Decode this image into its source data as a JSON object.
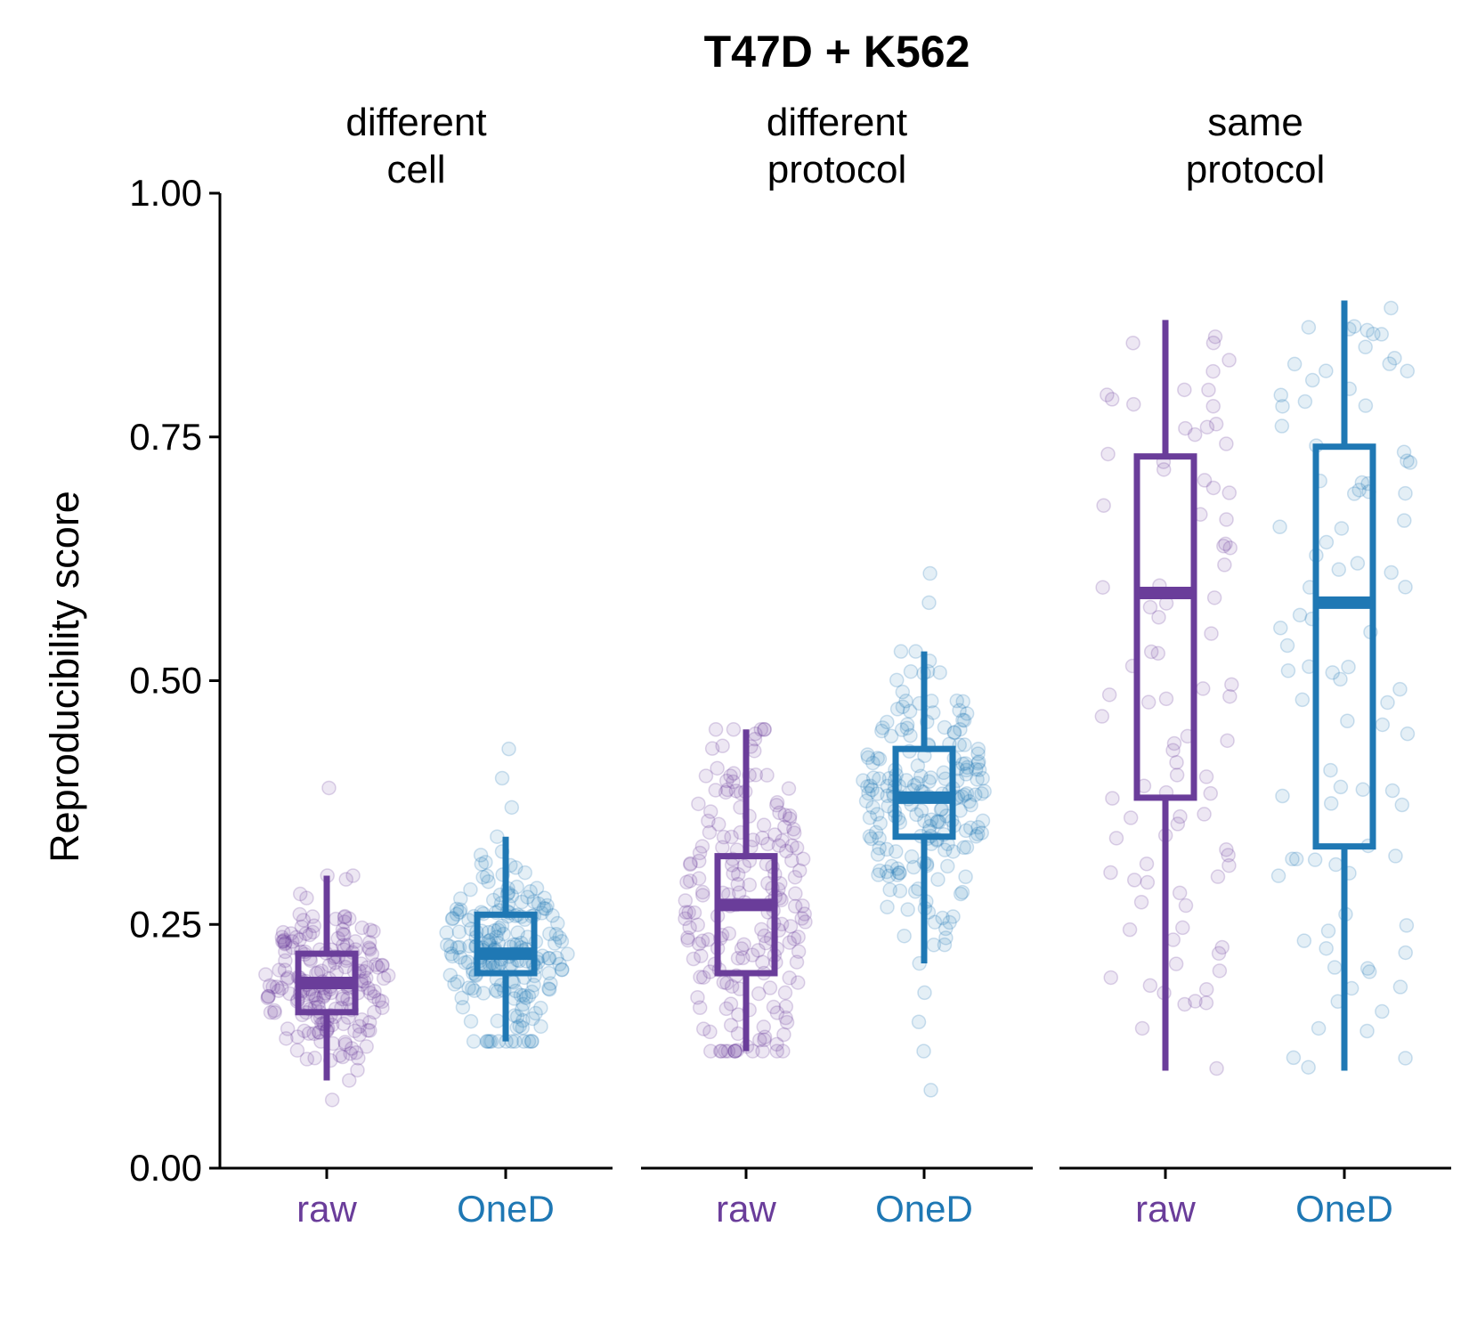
{
  "chart_data": {
    "type": "box",
    "title": "T47D + K562",
    "ylabel": "Reproducibility score",
    "ylim": [
      0,
      1
    ],
    "yticks": [
      "0.00",
      "0.25",
      "0.50",
      "0.75",
      "1.00"
    ],
    "grid": false,
    "categories": [
      "raw",
      "OneD"
    ],
    "category_colors": {
      "raw": "#6a3d9a",
      "OneD": "#1f78b4"
    },
    "panels": [
      {
        "label": "different\ncell",
        "groups": [
          {
            "category": "raw",
            "box": {
              "whisker_low": 0.09,
              "q1": 0.16,
              "median": 0.19,
              "q3": 0.22,
              "whisker_high": 0.3
            },
            "outliers": [
              0.07,
              0.39
            ],
            "n_points": 200
          },
          {
            "category": "OneD",
            "box": {
              "whisker_low": 0.13,
              "q1": 0.2,
              "median": 0.22,
              "q3": 0.26,
              "whisker_high": 0.34
            },
            "outliers": [
              0.37,
              0.4,
              0.43
            ],
            "n_points": 200
          }
        ]
      },
      {
        "label": "different\nprotocol",
        "groups": [
          {
            "category": "raw",
            "box": {
              "whisker_low": 0.12,
              "q1": 0.2,
              "median": 0.27,
              "q3": 0.32,
              "whisker_high": 0.45
            },
            "outliers": [],
            "n_points": 200
          },
          {
            "category": "OneD",
            "box": {
              "whisker_low": 0.21,
              "q1": 0.34,
              "median": 0.38,
              "q3": 0.43,
              "whisker_high": 0.53
            },
            "outliers": [
              0.08,
              0.12,
              0.15,
              0.18,
              0.58,
              0.61
            ],
            "n_points": 200
          }
        ]
      },
      {
        "label": "same\nprotocol",
        "groups": [
          {
            "category": "raw",
            "box": {
              "whisker_low": 0.1,
              "q1": 0.38,
              "median": 0.59,
              "q3": 0.73,
              "whisker_high": 0.87
            },
            "outliers": [],
            "n_points": 90
          },
          {
            "category": "OneD",
            "box": {
              "whisker_low": 0.1,
              "q1": 0.33,
              "median": 0.58,
              "q3": 0.74,
              "whisker_high": 0.89
            },
            "outliers": [],
            "n_points": 90
          }
        ]
      }
    ]
  }
}
